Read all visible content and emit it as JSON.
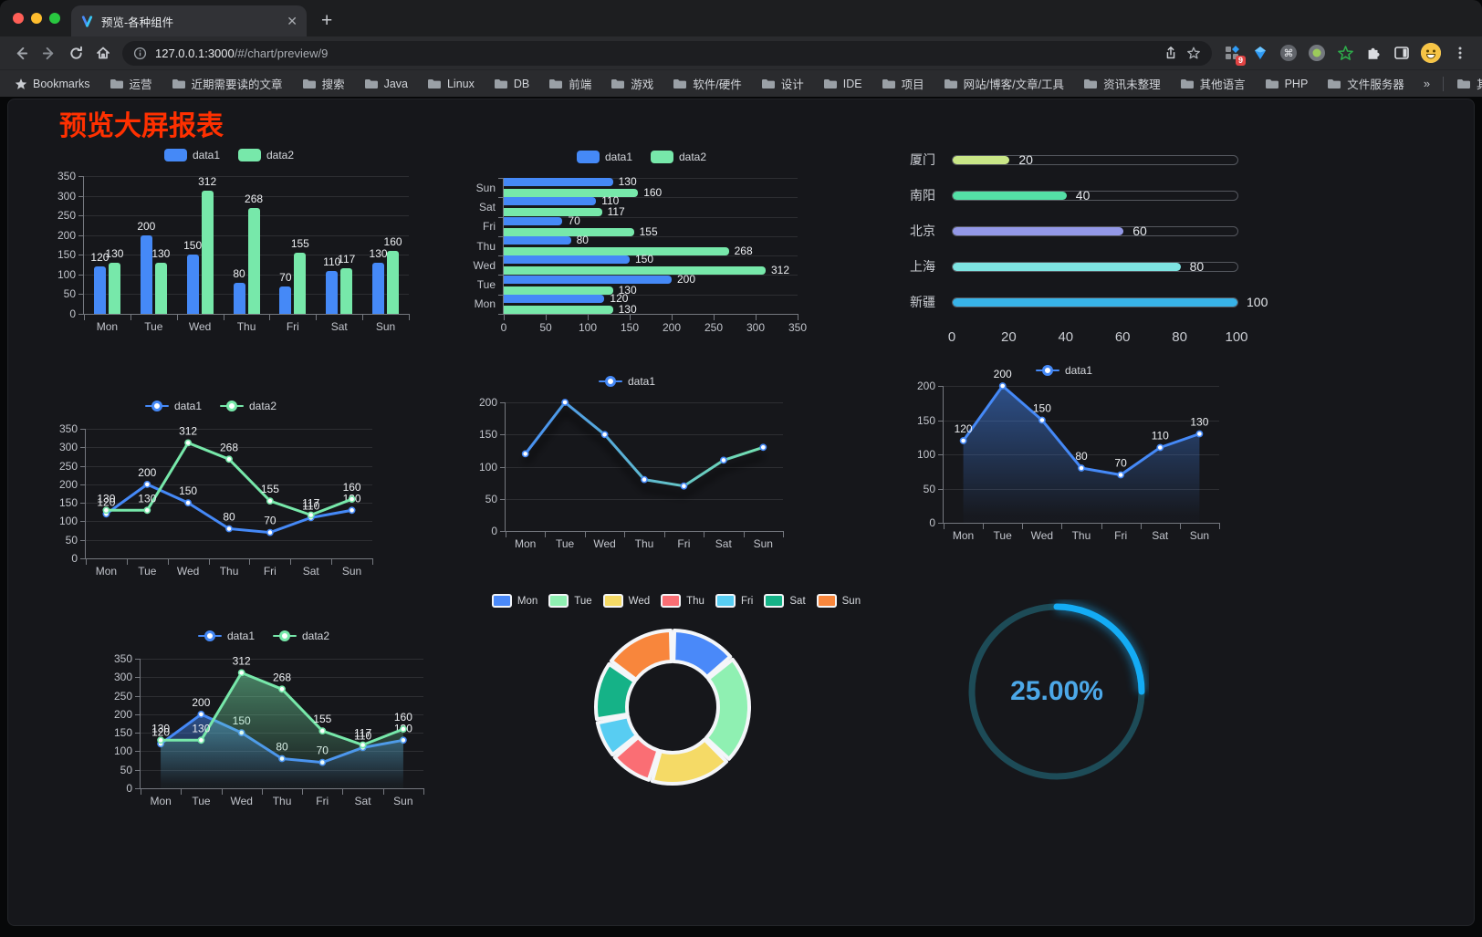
{
  "browser": {
    "tab_title": "预览-各种组件",
    "url_host": "127.0.0.1:3000",
    "url_path": "/#/chart/preview/9",
    "extension_badge": "9"
  },
  "bookmarks": {
    "label": "Bookmarks",
    "folders": [
      "运营",
      "近期需要读的文章",
      "搜索",
      "Java",
      "Linux",
      "DB",
      "前端",
      "游戏",
      "软件/硬件",
      "设计",
      "IDE",
      "项目",
      "网站/博客/文章/工具",
      "资讯未整理",
      "其他语言",
      "PHP",
      "文件服务器"
    ],
    "overflow": "»",
    "other": "其他书签"
  },
  "page": {
    "title": "预览大屏报表",
    "title_color": "#FF3000",
    "background": "#16171B"
  },
  "chart_data": [
    {
      "id": "bar-grouped",
      "type": "bar",
      "legend": true,
      "categories": [
        "Mon",
        "Tue",
        "Wed",
        "Thu",
        "Fri",
        "Sat",
        "Sun"
      ],
      "series": [
        {
          "name": "data1",
          "color": "#4589F7",
          "values": [
            120,
            200,
            150,
            80,
            70,
            110,
            130
          ]
        },
        {
          "name": "data2",
          "color": "#77E8AA",
          "values": [
            130,
            130,
            312,
            268,
            155,
            117,
            160
          ]
        }
      ],
      "ylim": [
        0,
        350
      ],
      "ystep": 50,
      "grid": true,
      "legend_position": "top"
    },
    {
      "id": "bar-horizontal",
      "type": "hbar",
      "legend": true,
      "categories_top_to_bottom": [
        "Sun",
        "Sat",
        "Fri",
        "Thu",
        "Wed",
        "Tue",
        "Mon"
      ],
      "series": [
        {
          "name": "data1",
          "color": "#4589F7",
          "values": [
            130,
            110,
            70,
            80,
            150,
            200,
            120
          ]
        },
        {
          "name": "data2",
          "color": "#77E8AA",
          "values": [
            160,
            117,
            155,
            268,
            312,
            130,
            130
          ]
        }
      ],
      "xlim": [
        0,
        350
      ],
      "xstep": 50,
      "grid": true,
      "legend_position": "top"
    },
    {
      "id": "progress-bars",
      "type": "progress",
      "rows": [
        {
          "label": "厦门",
          "value": 20,
          "color": "#C9E687"
        },
        {
          "label": "南阳",
          "value": 40,
          "color": "#54DFA6"
        },
        {
          "label": "北京",
          "value": 60,
          "color": "#9398E7"
        },
        {
          "label": "上海",
          "value": 80,
          "color": "#7EE4E2"
        },
        {
          "label": "新疆",
          "value": 100,
          "color": "#38B3E8"
        }
      ],
      "xticks": [
        0,
        20,
        40,
        60,
        80,
        100
      ],
      "xlim": [
        0,
        100
      ]
    },
    {
      "id": "line-dual",
      "type": "line",
      "legend": true,
      "categories": [
        "Mon",
        "Tue",
        "Wed",
        "Thu",
        "Fri",
        "Sat",
        "Sun"
      ],
      "series": [
        {
          "name": "data1",
          "color": "#4589F7",
          "values": [
            120,
            200,
            150,
            80,
            70,
            110,
            130
          ],
          "labels": true
        },
        {
          "name": "data2",
          "color": "#77E8AA",
          "values": [
            130,
            130,
            312,
            268,
            155,
            117,
            160
          ],
          "labels": true
        }
      ],
      "ylim": [
        0,
        350
      ],
      "ystep": 50,
      "grid": true,
      "legend_position": "top"
    },
    {
      "id": "line-gradient",
      "type": "line",
      "legend": true,
      "categories": [
        "Mon",
        "Tue",
        "Wed",
        "Thu",
        "Fri",
        "Sat",
        "Sun"
      ],
      "series": [
        {
          "name": "data1",
          "color": "#4589F7",
          "gradient": [
            "#4589F7",
            "#77E8AA"
          ],
          "values": [
            120,
            200,
            150,
            80,
            70,
            110,
            130
          ],
          "labels": false,
          "shadow": true
        }
      ],
      "ylim": [
        0,
        200
      ],
      "ystep": 50,
      "grid": true,
      "legend_position": "top"
    },
    {
      "id": "area-single",
      "type": "line",
      "legend": true,
      "categories": [
        "Mon",
        "Tue",
        "Wed",
        "Thu",
        "Fri",
        "Sat",
        "Sun"
      ],
      "series": [
        {
          "name": "data1",
          "color": "#4589F7",
          "area": true,
          "values": [
            120,
            200,
            150,
            80,
            70,
            110,
            130
          ],
          "labels": true
        }
      ],
      "ylim": [
        0,
        200
      ],
      "ystep": 50,
      "grid": true,
      "legend_position": "top"
    },
    {
      "id": "area-dual",
      "type": "line",
      "legend": true,
      "categories": [
        "Mon",
        "Tue",
        "Wed",
        "Thu",
        "Fri",
        "Sat",
        "Sun"
      ],
      "series": [
        {
          "name": "data1",
          "color": "#4589F7",
          "area": true,
          "values": [
            120,
            200,
            150,
            80,
            70,
            110,
            130
          ],
          "labels": true
        },
        {
          "name": "data2",
          "color": "#77E8AA",
          "area": true,
          "values": [
            130,
            130,
            312,
            268,
            155,
            117,
            160
          ],
          "labels": true
        }
      ],
      "ylim": [
        0,
        350
      ],
      "ystep": 50,
      "grid": true,
      "legend_position": "top"
    },
    {
      "id": "donut",
      "type": "pie",
      "legend": true,
      "legend_position": "top",
      "items": [
        {
          "name": "Mon",
          "value": 120,
          "color": "#4A89F9"
        },
        {
          "name": "Tue",
          "value": 200,
          "color": "#8FF0B2"
        },
        {
          "name": "Wed",
          "value": 150,
          "color": "#F5DA66"
        },
        {
          "name": "Thu",
          "value": 80,
          "color": "#FA6E74"
        },
        {
          "name": "Fri",
          "value": 70,
          "color": "#58CDF2"
        },
        {
          "name": "Sat",
          "value": 110,
          "color": "#15B287"
        },
        {
          "name": "Sun",
          "value": 130,
          "color": "#F8863C"
        }
      ]
    },
    {
      "id": "gauge",
      "type": "gauge",
      "value": 25,
      "label": "25.00%",
      "color": "#14ACF5",
      "track_color": "#1D4B57",
      "text_color": "#4CA8E8"
    }
  ]
}
